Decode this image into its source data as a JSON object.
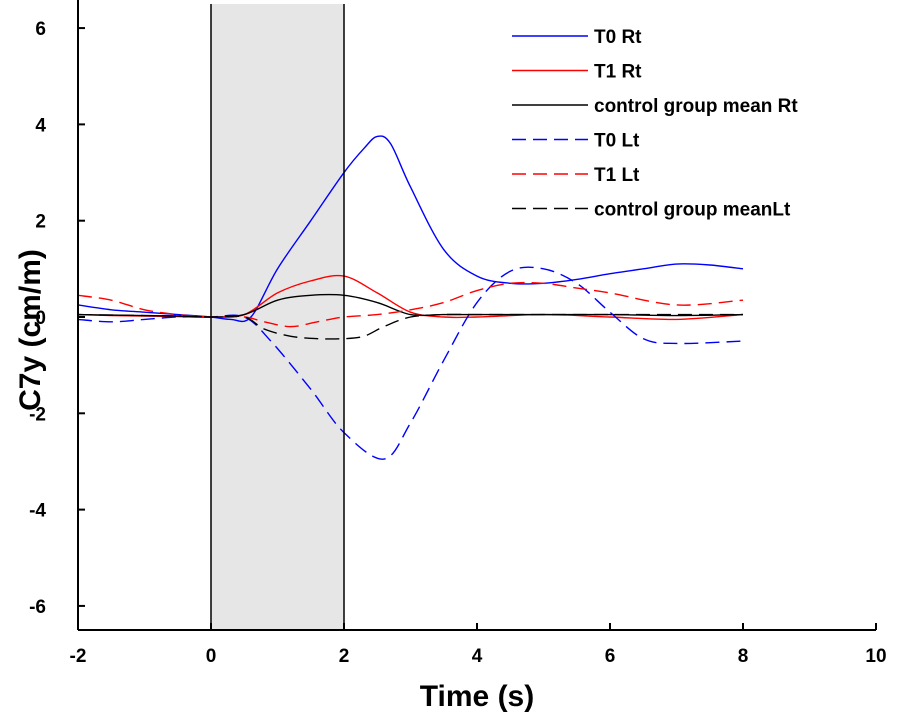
{
  "chart_data": {
    "type": "line",
    "title": "",
    "xlabel": "Time (s)",
    "ylabel": "C7y (cm/m)",
    "xlim": [
      -2,
      10
    ],
    "ylim": [
      -6.5,
      6.5
    ],
    "xticks": [
      -2,
      0,
      2,
      4,
      6,
      8,
      10
    ],
    "yticks": [
      -6,
      -4,
      -2,
      0,
      2,
      4,
      6
    ],
    "xtick_labels": [
      "-2",
      "0",
      "2",
      "4",
      "6",
      "8",
      "10"
    ],
    "ytick_labels": [
      "-6",
      "-4",
      "-2",
      "0",
      "2",
      "4",
      "6"
    ],
    "grid": false,
    "legend_position": "top-right",
    "shaded_region": {
      "x_start": 0,
      "x_end": 2,
      "color": "#e6e6e6"
    },
    "series": [
      {
        "name": "T0 Rt",
        "color": "#0000ff",
        "dash": "solid",
        "x": [
          -2,
          -1.5,
          -1,
          -0.5,
          0,
          0.3,
          0.6,
          1.0,
          1.5,
          2.0,
          2.3,
          2.5,
          2.7,
          3.0,
          3.5,
          4.0,
          4.5,
          5.0,
          5.5,
          6.0,
          6.5,
          7.0,
          7.5,
          8.0
        ],
        "y": [
          0.25,
          0.15,
          0.1,
          0.05,
          0.0,
          -0.05,
          0.0,
          1.0,
          2.0,
          3.0,
          3.5,
          3.75,
          3.6,
          2.7,
          1.4,
          0.85,
          0.7,
          0.7,
          0.78,
          0.9,
          1.0,
          1.1,
          1.08,
          1.0
        ]
      },
      {
        "name": "T1 Rt",
        "color": "#ff0000",
        "dash": "solid",
        "x": [
          -2,
          -1.5,
          -1,
          -0.5,
          0,
          0.5,
          1.0,
          1.5,
          2.0,
          2.5,
          3.0,
          3.5,
          4.0,
          5.0,
          6.0,
          7.0,
          8.0
        ],
        "y": [
          0.05,
          0.03,
          0.02,
          0.01,
          0.0,
          0.05,
          0.5,
          0.75,
          0.85,
          0.5,
          0.1,
          0.0,
          0.0,
          0.05,
          0.0,
          -0.05,
          0.05
        ]
      },
      {
        "name": "control group mean Rt",
        "color": "#000000",
        "dash": "solid",
        "x": [
          -2,
          -1.5,
          -1,
          -0.5,
          0,
          0.5,
          1.0,
          1.5,
          2.0,
          2.5,
          3.0,
          3.5,
          4.0,
          5.0,
          6.0,
          7.0,
          8.0
        ],
        "y": [
          0.05,
          0.04,
          0.03,
          0.02,
          0.0,
          0.05,
          0.35,
          0.45,
          0.45,
          0.3,
          0.05,
          0.05,
          0.05,
          0.05,
          0.05,
          0.03,
          0.05
        ]
      },
      {
        "name": "T0 Lt",
        "color": "#0000ff",
        "dash": "dashed",
        "x": [
          -2,
          -1.5,
          -1,
          -0.5,
          0,
          0.5,
          0.9,
          1.5,
          2.0,
          2.6,
          3.0,
          3.5,
          4.0,
          4.5,
          5.0,
          5.5,
          6.0,
          6.5,
          7.0,
          8.0
        ],
        "y": [
          -0.05,
          -0.1,
          -0.05,
          0.0,
          0.0,
          0.0,
          -0.5,
          -1.5,
          -2.4,
          -2.95,
          -2.2,
          -0.9,
          0.3,
          0.95,
          1.0,
          0.7,
          0.1,
          -0.45,
          -0.55,
          -0.5
        ]
      },
      {
        "name": "T1 Lt",
        "color": "#ff0000",
        "dash": "dashed",
        "x": [
          -2,
          -1.5,
          -1,
          -0.5,
          0,
          0.5,
          0.8,
          1.2,
          1.6,
          2.0,
          2.5,
          3.0,
          3.5,
          4.0,
          4.5,
          5.0,
          5.5,
          6.0,
          7.0,
          8.0
        ],
        "y": [
          0.45,
          0.35,
          0.15,
          0.05,
          0.0,
          0.0,
          -0.1,
          -0.2,
          -0.1,
          0.0,
          0.05,
          0.15,
          0.3,
          0.55,
          0.7,
          0.7,
          0.6,
          0.5,
          0.25,
          0.35
        ]
      },
      {
        "name": "control group meanLt",
        "color": "#000000",
        "dash": "dashed",
        "x": [
          -2,
          -1.5,
          -1,
          -0.5,
          0,
          0.5,
          0.8,
          1.2,
          1.6,
          2.0,
          2.3,
          2.6,
          3.0,
          3.5,
          4.0,
          5.0,
          6.0,
          7.0,
          8.0
        ],
        "y": [
          0.05,
          0.04,
          0.03,
          0.02,
          0.0,
          0.0,
          -0.25,
          -0.4,
          -0.45,
          -0.45,
          -0.4,
          -0.2,
          0.0,
          0.05,
          0.05,
          0.05,
          0.05,
          0.05,
          0.05
        ]
      }
    ]
  }
}
